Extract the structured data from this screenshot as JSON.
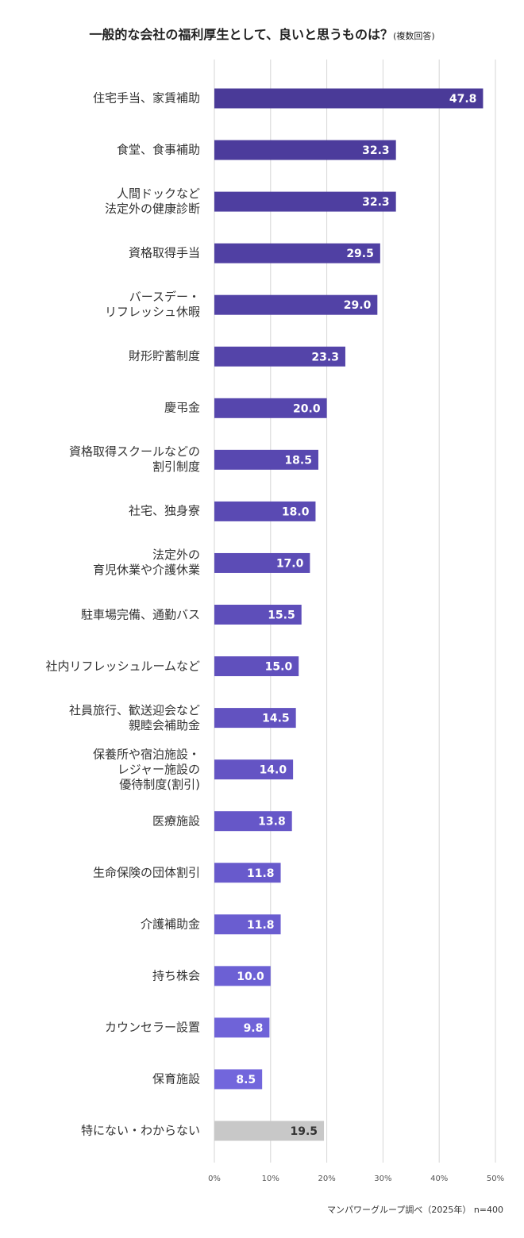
{
  "chart_data": {
    "type": "barh",
    "title": "一般的な会社の福利厚生として、良いと思うものは？",
    "subtitle": "(複数回答)",
    "source": "マンパワーグループ調べ（2025年） n=400",
    "categories": [
      "住宅手当、家賃補助",
      "食堂、食事補助",
      "人間ドックなど\n法定外の健康診断",
      "資格取得手当",
      "バースデー・\nリフレッシュ休暇",
      "財形貯蓄制度",
      "慶弔金",
      "資格取得スクールなどの\n割引制度",
      "社宅、独身寮",
      "法定外の\n育児休業や介護休業",
      "駐車場完備、通勤バス",
      "社内リフレッシュルームなど",
      "社員旅行、歓送迎会など\n親睦会補助金",
      "保養所や宿泊施設・\nレジャー施設の\n優待制度(割引)",
      "医療施設",
      "生命保険の団体割引",
      "介護補助金",
      "持ち株会",
      "カウンセラー設置",
      "保育施設",
      "特にない・わからない"
    ],
    "values": [
      47.8,
      32.3,
      32.3,
      29.5,
      29.0,
      23.3,
      20.0,
      18.5,
      18.0,
      17.0,
      15.5,
      15.0,
      14.5,
      14.0,
      13.8,
      11.8,
      11.8,
      10.0,
      9.8,
      8.5,
      19.5
    ],
    "value_labels": [
      "47.8",
      "32.3",
      "32.3",
      "29.5",
      "29.0",
      "23.3",
      "20.0",
      "18.5",
      "18.0",
      "17.0",
      "15.5",
      "15.0",
      "14.5",
      "14.0",
      "13.8",
      "11.8",
      "11.8",
      "10.0",
      "9.8",
      "8.5",
      "19.5"
    ],
    "colors": [
      "#4a3a98",
      "#4c3c9c",
      "#4e3ea0",
      "#5040a3",
      "#5242a6",
      "#5444a9",
      "#5646ad",
      "#5848b0",
      "#5a4ab3",
      "#5c4cb6",
      "#5e4eba",
      "#6050bd",
      "#6252c0",
      "#6454c4",
      "#6657c8",
      "#685acc",
      "#6a5dd0",
      "#6c60d4",
      "#6f63d8",
      "#7266dc",
      "#c8c8c8"
    ],
    "xlim": [
      0,
      50
    ],
    "xticks": [
      {
        "value": 0,
        "label": "0%"
      },
      {
        "value": 10,
        "label": "10%"
      },
      {
        "value": 20,
        "label": "20%"
      },
      {
        "value": 30,
        "label": "30%"
      },
      {
        "value": 40,
        "label": "40%"
      },
      {
        "value": 50,
        "label": "50%"
      }
    ],
    "grid": true
  }
}
